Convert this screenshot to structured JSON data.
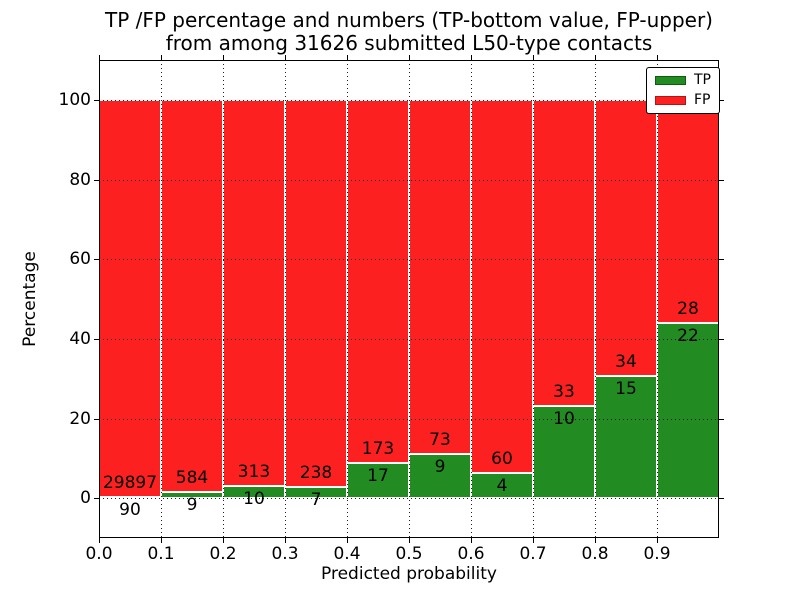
{
  "title": {
    "line1": "TP /FP percentage and numbers (TP-bottom value, FP-upper)",
    "line2": "from among 31626 submitted L50-type contacts"
  },
  "axes": {
    "xlabel": "Predicted probability",
    "ylabel": "Percentage",
    "x_tick_labels": [
      "0.0",
      "0.1",
      "0.2",
      "0.3",
      "0.4",
      "0.5",
      "0.6",
      "0.7",
      "0.8",
      "0.9"
    ],
    "y_tick_labels": [
      "0",
      "20",
      "40",
      "60",
      "80",
      "100"
    ]
  },
  "legend": {
    "position": "upper right",
    "entries": [
      {
        "label": "TP",
        "color": "#228b22",
        "edge": "#0f5c0f"
      },
      {
        "label": "FP",
        "color": "#fc2020",
        "edge": "#b31515"
      }
    ]
  },
  "chart_data": {
    "type": "bar",
    "subtype": "stacked-percentage",
    "title": "TP /FP percentage and numbers (TP-bottom value, FP-upper) from among 31626 submitted L50-type contacts",
    "xlabel": "Predicted probability",
    "ylabel": "Percentage",
    "total_submitted": 31626,
    "bin_edges": [
      0.0,
      0.1,
      0.2,
      0.3,
      0.4,
      0.5,
      0.6,
      0.7,
      0.8,
      0.9,
      1.0
    ],
    "series": [
      {
        "name": "TP",
        "color": "#228b22",
        "counts": [
          90,
          9,
          10,
          7,
          17,
          9,
          4,
          10,
          15,
          22
        ]
      },
      {
        "name": "FP",
        "color": "#fc2020",
        "counts": [
          29897,
          584,
          313,
          238,
          173,
          73,
          60,
          33,
          34,
          28
        ]
      }
    ],
    "tp_percent": [
      0.3,
      1.52,
      3.1,
      2.86,
      8.95,
      10.98,
      6.25,
      23.26,
      30.61,
      44.0
    ],
    "fp_percent": [
      99.7,
      98.48,
      96.9,
      97.14,
      91.05,
      89.02,
      93.75,
      76.74,
      69.39,
      56.0
    ],
    "xlim": [
      0.0,
      1.0
    ],
    "ylim": [
      -10,
      110
    ],
    "x_ticks": [
      0.0,
      0.1,
      0.2,
      0.3,
      0.4,
      0.5,
      0.6,
      0.7,
      0.8,
      0.9
    ],
    "y_ticks": [
      0,
      20,
      40,
      60,
      80,
      100
    ],
    "grid": "dotted, both axes, drawn above bars",
    "bar_edge_color": "#ffffff",
    "legend_position": "upper right"
  },
  "colors": {
    "tp": "#228b22",
    "fp": "#fc2020",
    "background": "#ffffff",
    "text": "#000000",
    "grid": "#000000"
  }
}
